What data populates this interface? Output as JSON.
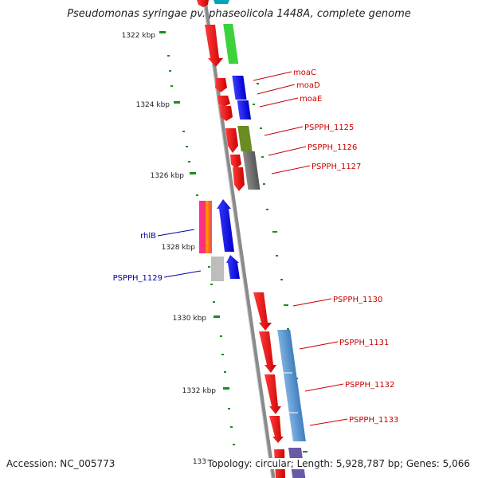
{
  "title": "Pseudomonas syringae pv. phaseolicola 1448A, complete genome",
  "accession": "Accession: NC_005773",
  "summary": "Topology: circular; Length: 5,928,787 bp; Genes: 5,066",
  "colors": {
    "backbone": "#888888",
    "tick": "#1e8c1e",
    "label_forward": "#cc0000",
    "label_reverse": "#0000aa"
  },
  "scale": {
    "tick_labels": [
      "1322 kbp",
      "1324 kbp",
      "1326 kbp",
      "1328 kbp",
      "1330 kbp",
      "1332 kbp",
      "133"
    ]
  },
  "gene_labels": [
    {
      "text": "moaC",
      "strand": "forward"
    },
    {
      "text": "moaD",
      "strand": "forward"
    },
    {
      "text": "moaE",
      "strand": "forward"
    },
    {
      "text": "PSPPH_1125",
      "strand": "forward"
    },
    {
      "text": "PSPPH_1126",
      "strand": "forward"
    },
    {
      "text": "PSPPH_1127",
      "strand": "forward"
    },
    {
      "text": "rhlB",
      "strand": "reverse"
    },
    {
      "text": "PSPPH_1129",
      "strand": "reverse"
    },
    {
      "text": "PSPPH_1130",
      "strand": "forward"
    },
    {
      "text": "PSPPH_1131",
      "strand": "forward"
    },
    {
      "text": "PSPPH_1132",
      "strand": "forward"
    },
    {
      "text": "PSPPH_1133",
      "strand": "forward"
    }
  ]
}
